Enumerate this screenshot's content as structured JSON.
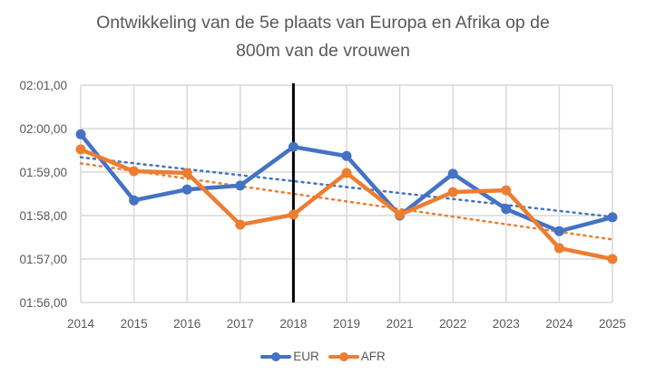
{
  "chart_data": {
    "type": "line",
    "title_lines": [
      "Ontwikkeling van de 5e plaats van Europa en Afrika op de",
      "800m van de vrouwen"
    ],
    "xlabel": "",
    "ylabel": "",
    "categories": [
      "2014",
      "2015",
      "2016",
      "2017",
      "2018",
      "2019",
      "2021",
      "2022",
      "2023",
      "2024",
      "2025"
    ],
    "y_unit": "seconds",
    "ylim": [
      116,
      121
    ],
    "y_ticks": [
      {
        "value": 116,
        "label": "01:56,00"
      },
      {
        "value": 117,
        "label": "01:57,00"
      },
      {
        "value": 118,
        "label": "01:58,00"
      },
      {
        "value": 119,
        "label": "01:59,00"
      },
      {
        "value": 120,
        "label": "02:00,00"
      },
      {
        "value": 121,
        "label": "02:01,00"
      }
    ],
    "grid": true,
    "series": [
      {
        "name": "EUR",
        "color": "#4472C4",
        "values": [
          119.87,
          118.35,
          118.6,
          118.69,
          119.58,
          119.37,
          118.0,
          118.96,
          118.15,
          117.64,
          117.96
        ],
        "trendline": {
          "type": "linear",
          "start": 119.34,
          "end": 117.97,
          "color": "#4472C4",
          "style": "dotted"
        }
      },
      {
        "name": "AFR",
        "color": "#ED7D31",
        "values": [
          119.52,
          119.02,
          118.98,
          117.79,
          118.02,
          118.98,
          118.02,
          118.54,
          118.58,
          117.25,
          117.0
        ],
        "trendline": {
          "type": "linear",
          "start": 119.2,
          "end": 117.45,
          "color": "#ED7D31",
          "style": "dotted"
        }
      }
    ],
    "annotations": [
      {
        "type": "vertical-line",
        "x": "2018",
        "color": "#000000"
      }
    ],
    "legend": {
      "position": "bottom",
      "entries": [
        "EUR",
        "AFR"
      ]
    }
  }
}
